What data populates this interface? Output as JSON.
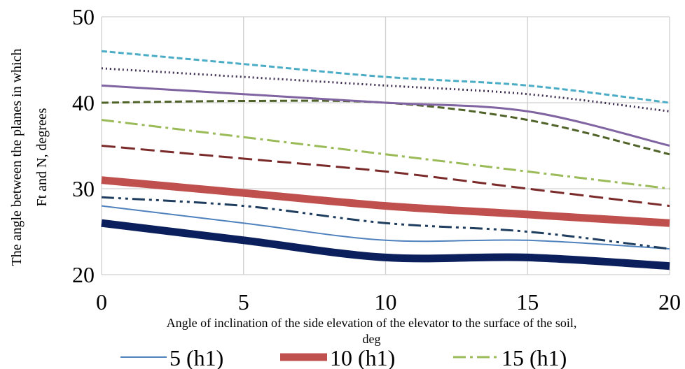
{
  "chart_data": {
    "type": "line",
    "title": "",
    "xlabel": "Angle of inclination of the side elevation of the elevator to the surface of the soil, deg",
    "ylabel_line1": "The angle between the planes in which",
    "ylabel_line2": "Ft and N, degrees",
    "x": [
      0,
      5,
      10,
      15,
      20
    ],
    "xlim": [
      0,
      20
    ],
    "ylim": [
      20,
      50
    ],
    "x_ticks": [
      0,
      5,
      10,
      15,
      20
    ],
    "y_ticks": [
      20,
      30,
      40,
      50
    ],
    "grid": true,
    "legend_position": "bottom",
    "series": [
      {
        "name": "5 (h1)",
        "values": [
          28,
          26,
          24,
          24,
          23
        ],
        "color": "#4F81BD",
        "width": 2,
        "dash": "",
        "show_in_legend": true
      },
      {
        "name": "10 (h1)",
        "values": [
          31,
          29.5,
          28,
          27,
          26
        ],
        "color": "#C0504D",
        "width": 11,
        "dash": "",
        "show_in_legend": true
      },
      {
        "name": "15 (h1)",
        "values": [
          38,
          36,
          34,
          32,
          30
        ],
        "color": "#9BBB59",
        "width": 3,
        "dash": "18 6 4 6",
        "show_in_legend": true
      },
      {
        "name": "",
        "values": [
          26,
          24,
          22,
          22,
          21
        ],
        "color": "#0B1F5C",
        "width": 11,
        "dash": "",
        "show_in_legend": false
      },
      {
        "name": "",
        "values": [
          29,
          28,
          26,
          25,
          23
        ],
        "color": "#1F3D5E",
        "width": 3,
        "dash": "18 6 4 6 4 6",
        "show_in_legend": false
      },
      {
        "name": "",
        "values": [
          35,
          33.5,
          32,
          30,
          28
        ],
        "color": "#7B2A2A",
        "width": 3,
        "dash": "20 8",
        "show_in_legend": false
      },
      {
        "name": "",
        "values": [
          40,
          40.2,
          40,
          38,
          34
        ],
        "color": "#4F6228",
        "width": 3,
        "dash": "10 5",
        "show_in_legend": false
      },
      {
        "name": "",
        "values": [
          42,
          41,
          40,
          39,
          35
        ],
        "color": "#8064A2",
        "width": 3,
        "dash": "",
        "show_in_legend": false
      },
      {
        "name": "",
        "values": [
          44,
          43,
          42,
          41,
          39
        ],
        "color": "#403152",
        "width": 3,
        "dash": "2 4",
        "show_in_legend": false
      },
      {
        "name": "",
        "values": [
          46,
          44.5,
          43,
          42,
          40
        ],
        "color": "#4BACC6",
        "width": 3,
        "dash": "8 4",
        "show_in_legend": false
      }
    ]
  }
}
